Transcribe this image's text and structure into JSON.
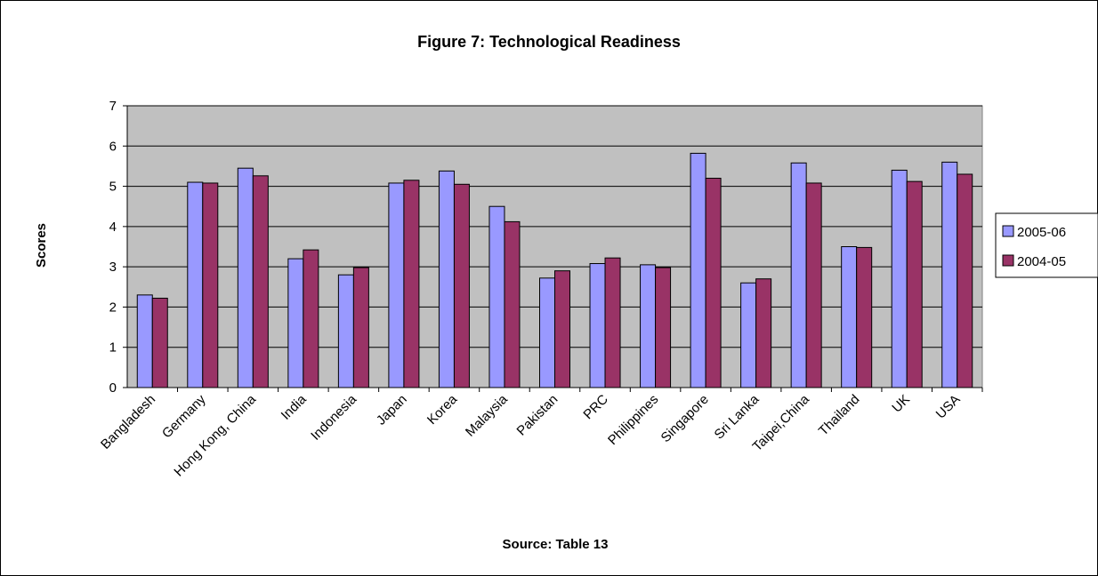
{
  "chart_data": {
    "type": "bar",
    "title": "Figure 7: Technological Readiness",
    "ylabel": "Scores",
    "xlabel": "",
    "source": "Source:  Table 13",
    "ylim": [
      0,
      7
    ],
    "yticks": [
      0,
      1,
      2,
      3,
      4,
      5,
      6,
      7
    ],
    "grid": true,
    "legend_position": "right",
    "categories": [
      "Bangladesh",
      "Germany",
      "Hong Kong, China",
      "India",
      "Indonesia",
      "Japan",
      "Korea",
      "Malaysia",
      "Pakistan",
      "PRC",
      "Philippines",
      "Singapore",
      "Sri Lanka",
      "Taipei,China",
      "Thailand",
      "UK",
      "USA"
    ],
    "series": [
      {
        "name": "2005-06",
        "color": "#9999ff",
        "values": [
          2.3,
          5.1,
          5.45,
          3.2,
          2.8,
          5.08,
          5.38,
          4.5,
          2.72,
          3.08,
          3.05,
          5.82,
          2.6,
          5.58,
          3.5,
          5.4,
          5.6
        ]
      },
      {
        "name": "2004-05",
        "color": "#993366",
        "values": [
          2.22,
          5.08,
          5.26,
          3.42,
          2.98,
          5.15,
          5.05,
          4.12,
          2.9,
          3.22,
          2.98,
          5.2,
          2.7,
          5.08,
          3.48,
          5.12,
          5.3
        ]
      }
    ],
    "plot_background": "#c0c0c0"
  }
}
